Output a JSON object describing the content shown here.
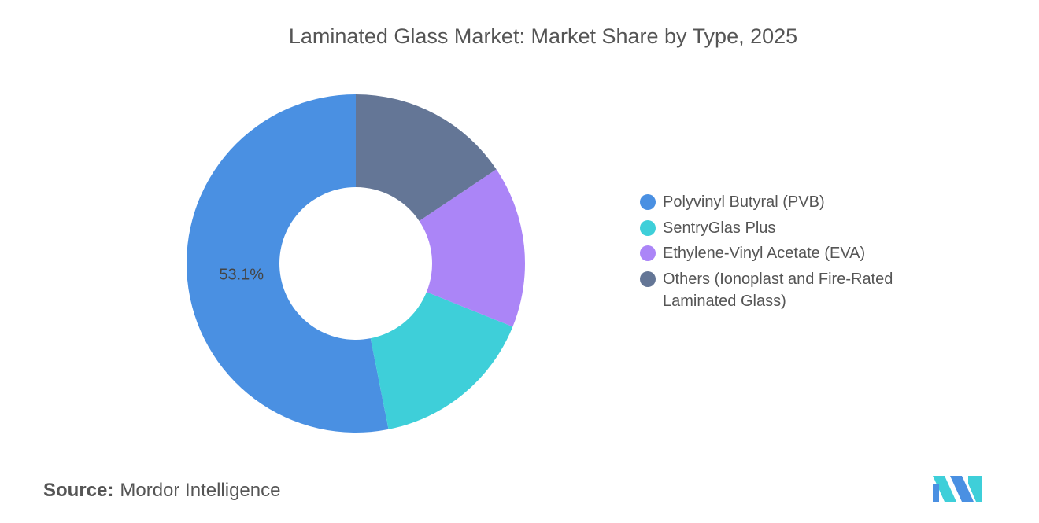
{
  "chart_data": {
    "type": "donut",
    "title": "Laminated Glass Market: Market Share by Type, 2025",
    "categories": [
      "Polyvinyl Butyral (PVB)",
      "SentryGlas Plus",
      "Ethylene-Vinyl Acetate (EVA)",
      "Others (Ionoplast and Fire-Rated Laminated Glass)"
    ],
    "values": [
      53.1,
      15.8,
      15.5,
      15.6
    ],
    "value_labels": [
      "53.1%",
      null,
      null,
      null
    ],
    "colors": [
      "#4a90e2",
      "#3ecfd9",
      "#ab85f7",
      "#647696"
    ],
    "legend": "right"
  },
  "source": {
    "label": "Source:",
    "text": "Mordor Intelligence"
  }
}
